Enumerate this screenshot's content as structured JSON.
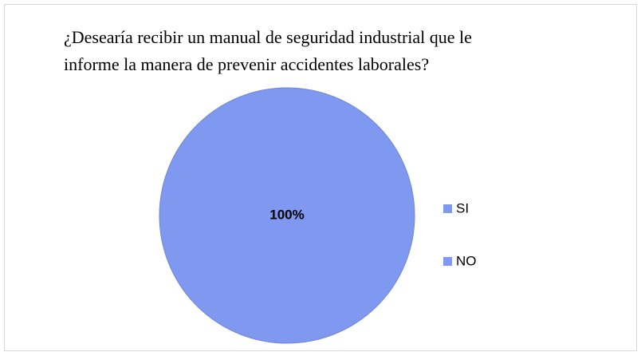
{
  "chart_data": {
    "type": "pie",
    "title": [
      "¿Desearía recibir un manual de seguridad industrial  que le",
      "informe la manera de prevenir accidentes laborales?"
    ],
    "categories": [
      "SI",
      "NO"
    ],
    "values": [
      100,
      0
    ],
    "value_labels": [
      "100%",
      null
    ],
    "colors": [
      "#7f99f1",
      "#7f99f1"
    ],
    "legend": "right"
  }
}
